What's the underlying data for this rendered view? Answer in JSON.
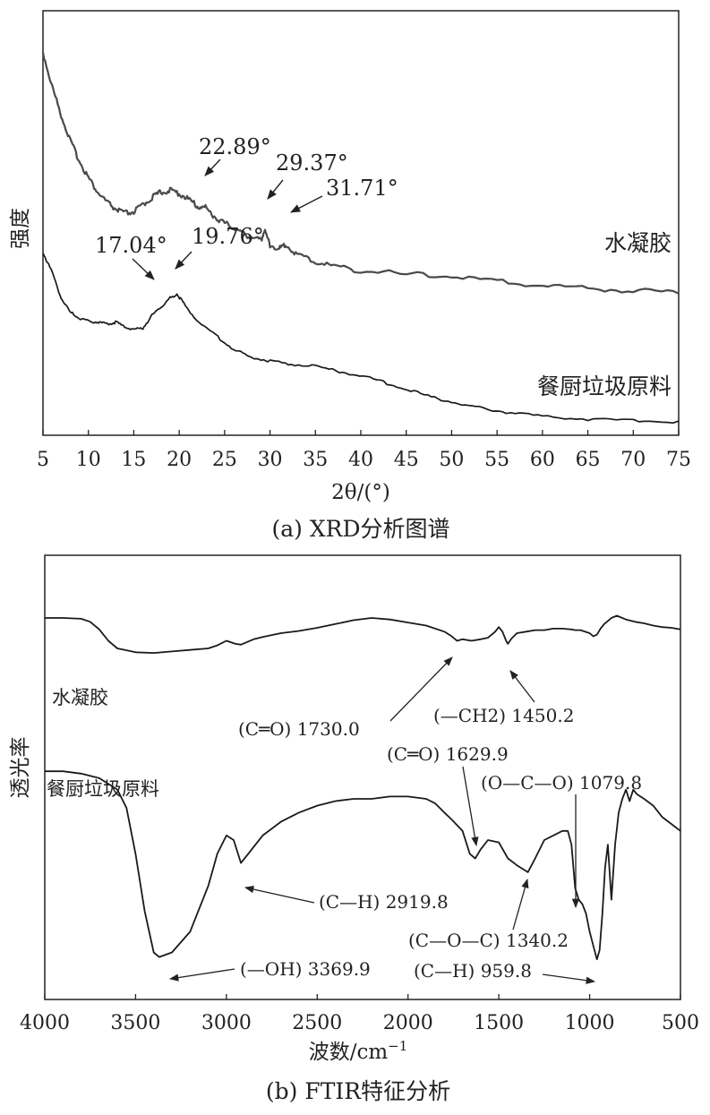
{
  "charts": [
    {
      "type": "line",
      "caption": "(a) XRD分析图谱",
      "xlabel": "2θ/(°)",
      "ylabel": "强度",
      "xlim": [
        5,
        75
      ],
      "xticks": [
        "5",
        "10",
        "15",
        "20",
        "25",
        "30",
        "35",
        "40",
        "45",
        "50",
        "55",
        "60",
        "65",
        "70",
        "75"
      ],
      "series": [
        {
          "name": "水凝胶",
          "color": "#4a4a4a",
          "x": [
            5,
            6,
            7,
            8,
            9,
            10,
            11,
            12,
            13,
            14,
            15,
            16,
            17,
            18,
            19,
            20,
            21,
            22,
            22.89,
            24,
            25,
            26,
            27,
            28,
            29,
            29.37,
            30,
            31,
            31.71,
            33,
            35,
            37,
            40,
            45,
            50,
            55,
            60,
            65,
            70,
            75
          ],
          "y": [
            100,
            88,
            78,
            69,
            62,
            56,
            51,
            47.5,
            45,
            43.5,
            44,
            46.5,
            49,
            51,
            51.5,
            50.5,
            48.5,
            46,
            45.5,
            42,
            40,
            38.5,
            36.5,
            35,
            34,
            37.5,
            32.5,
            31,
            32.5,
            29,
            26.5,
            25,
            23.5,
            22,
            21.5,
            19.5,
            18.3,
            17.2,
            16.4,
            15.8
          ]
        },
        {
          "name": "餐厨垃圾原料",
          "color": "#1a1a1a",
          "x": [
            5,
            6,
            7,
            8,
            9,
            10,
            11,
            12,
            13,
            14,
            15,
            16,
            17.04,
            18,
            19,
            19.76,
            20.5,
            22,
            24,
            26,
            28,
            30,
            32,
            35,
            38,
            41,
            44,
            47,
            50,
            53,
            56,
            60,
            65,
            70,
            75
          ],
          "y": [
            30,
            23,
            14,
            9,
            7,
            6,
            5.5,
            5,
            5.5,
            4,
            3,
            3.5,
            8,
            11,
            14,
            15.5,
            12,
            6,
            1,
            -4,
            -7,
            -8,
            -9,
            -10,
            -12,
            -14,
            -17,
            -20,
            -22.5,
            -24.5,
            -26,
            -27.5,
            -28.5,
            -29,
            -29.5
          ]
        }
      ],
      "annotations": [
        {
          "label": "22.89°",
          "x": 22.89
        },
        {
          "label": "29.37°",
          "x": 29.37
        },
        {
          "label": "31.71°",
          "x": 31.71
        },
        {
          "label": "17.04°",
          "x": 17.04
        },
        {
          "label": "19.76°",
          "x": 19.76
        }
      ]
    },
    {
      "type": "line",
      "caption": "(b) FTIR特征分析",
      "xlabel": "波数/cm",
      "xlabel_sup": "−1",
      "ylabel": "透光率",
      "xlim": [
        4000,
        500
      ],
      "xticks": [
        "4000",
        "3500",
        "3000",
        "2500",
        "2000",
        "1500",
        "1000",
        "500"
      ],
      "series": [
        {
          "name": "水凝胶",
          "color": "#1a1a1a",
          "x": [
            4000,
            3900,
            3800,
            3750,
            3700,
            3650,
            3600,
            3500,
            3400,
            3300,
            3200,
            3100,
            3050,
            3000,
            2950,
            2919.8,
            2850,
            2800,
            2700,
            2600,
            2500,
            2400,
            2300,
            2200,
            2100,
            2000,
            1900,
            1800,
            1760,
            1730,
            1700,
            1650,
            1600,
            1560,
            1520,
            1500,
            1480,
            1460,
            1450.2,
            1430,
            1400,
            1350,
            1300,
            1250,
            1200,
            1150,
            1100,
            1079.8,
            1050,
            1000,
            980,
            959.8,
            940,
            920,
            900,
            880,
            850,
            800,
            750,
            700,
            650,
            600,
            550,
            500
          ],
          "y": [
            100,
            100,
            99,
            95,
            85,
            70,
            60,
            55,
            54,
            56,
            58,
            60,
            64,
            70,
            66,
            65,
            72,
            75,
            80,
            83,
            87,
            92,
            97,
            100,
            98,
            94,
            90,
            82,
            76,
            70,
            72,
            70,
            72,
            74,
            82,
            88,
            82,
            70,
            66,
            73,
            80,
            82,
            84,
            84,
            86,
            86,
            85,
            84,
            84,
            80,
            76,
            78,
            86,
            92,
            96,
            100,
            103,
            98,
            95,
            93,
            90,
            88,
            87,
            85
          ]
        },
        {
          "name": "餐厨垃圾原料",
          "color": "#1a1a1a",
          "x": [
            4000,
            3900,
            3800,
            3700,
            3600,
            3550,
            3500,
            3450,
            3400,
            3369.9,
            3300,
            3200,
            3100,
            3050,
            3000,
            2960,
            2919.8,
            2880,
            2800,
            2700,
            2600,
            2500,
            2400,
            2300,
            2200,
            2100,
            2000,
            1900,
            1850,
            1800,
            1760,
            1700,
            1660,
            1629.9,
            1600,
            1560,
            1500,
            1450,
            1400,
            1360,
            1340.2,
            1300,
            1250,
            1200,
            1150,
            1120,
            1100,
            1085,
            1079.8,
            1060,
            1040,
            1020,
            1000,
            980,
            959.8,
            945,
            930,
            915,
            900,
            880,
            860,
            840,
            820,
            800,
            780,
            760,
            740,
            700,
            650,
            600,
            550,
            500
          ],
          "y": [
            96,
            96,
            95,
            93,
            88,
            80,
            60,
            35,
            17,
            15,
            17,
            26,
            46,
            60,
            68,
            66,
            56,
            60,
            68,
            74,
            78,
            81,
            83,
            84,
            84,
            85,
            85,
            84,
            82,
            78,
            75,
            70,
            60,
            58,
            62,
            66,
            65,
            58,
            55,
            53,
            52,
            58,
            66,
            68,
            70,
            70,
            64,
            50,
            45,
            40,
            38,
            34,
            26,
            20,
            14,
            18,
            34,
            54,
            64,
            40,
            64,
            78,
            84,
            88,
            83,
            88,
            86,
            84,
            81,
            76,
            73,
            70
          ]
        }
      ],
      "annotations": [
        {
          "label": "(C═O) 1730.0",
          "x": 1730.0
        },
        {
          "label": "(—CH2) 1450.2",
          "x": 1450.2
        },
        {
          "label": "(C═O) 1629.9",
          "x": 1629.9
        },
        {
          "label": "(O—C—O) 1079.8",
          "x": 1079.8
        },
        {
          "label": "(C—H) 2919.8",
          "x": 2919.8
        },
        {
          "label": "(C—O—C) 1340.2",
          "x": 1340.2
        },
        {
          "label": "(—OH) 3369.9",
          "x": 3369.9
        },
        {
          "label": "(C—H) 959.8",
          "x": 959.8
        }
      ]
    }
  ]
}
